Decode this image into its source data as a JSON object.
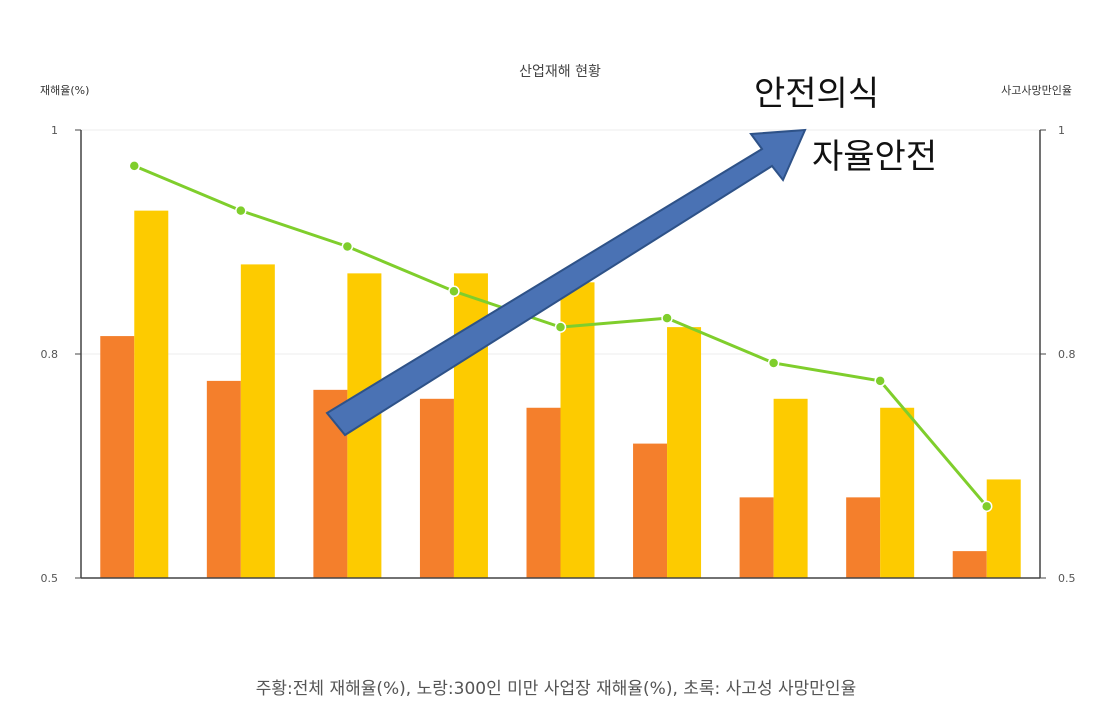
{
  "chart_data": {
    "type": "bar",
    "title": "산업재해 현황",
    "ylabel_left": "재해율(%)",
    "ylabel_right": "사고사망만인율",
    "left_axis": {
      "ticks": [
        "1",
        "0.8",
        "0.5"
      ]
    },
    "right_axis": {
      "ticks": [
        "1",
        "0.8",
        "0.5"
      ]
    },
    "ylim": [
      0.5,
      1.0
    ],
    "x_count": 9,
    "series": [
      {
        "color": "#f47f2c",
        "values": [
          0.77,
          0.72,
          0.71,
          0.7,
          0.69,
          0.65,
          0.59,
          0.59,
          0.53
        ]
      },
      {
        "color": "#fdcb00",
        "values": [
          0.91,
          0.85,
          0.84,
          0.84,
          0.83,
          0.78,
          0.7,
          0.69,
          0.61
        ]
      },
      {
        "color": "#7fce2c",
        "type": "line",
        "values": [
          0.96,
          0.91,
          0.87,
          0.82,
          0.78,
          0.79,
          0.74,
          0.72,
          0.58
        ]
      }
    ],
    "grid": true
  },
  "annotation": {
    "arrow_color": "#4a72b4",
    "label_top": "안전의식",
    "label_bottom": "자율안전"
  },
  "caption": "주황:전체 재해율(%), 노랑:300인 미만 사업장 재해율(%), 초록: 사고성 사망만인율"
}
